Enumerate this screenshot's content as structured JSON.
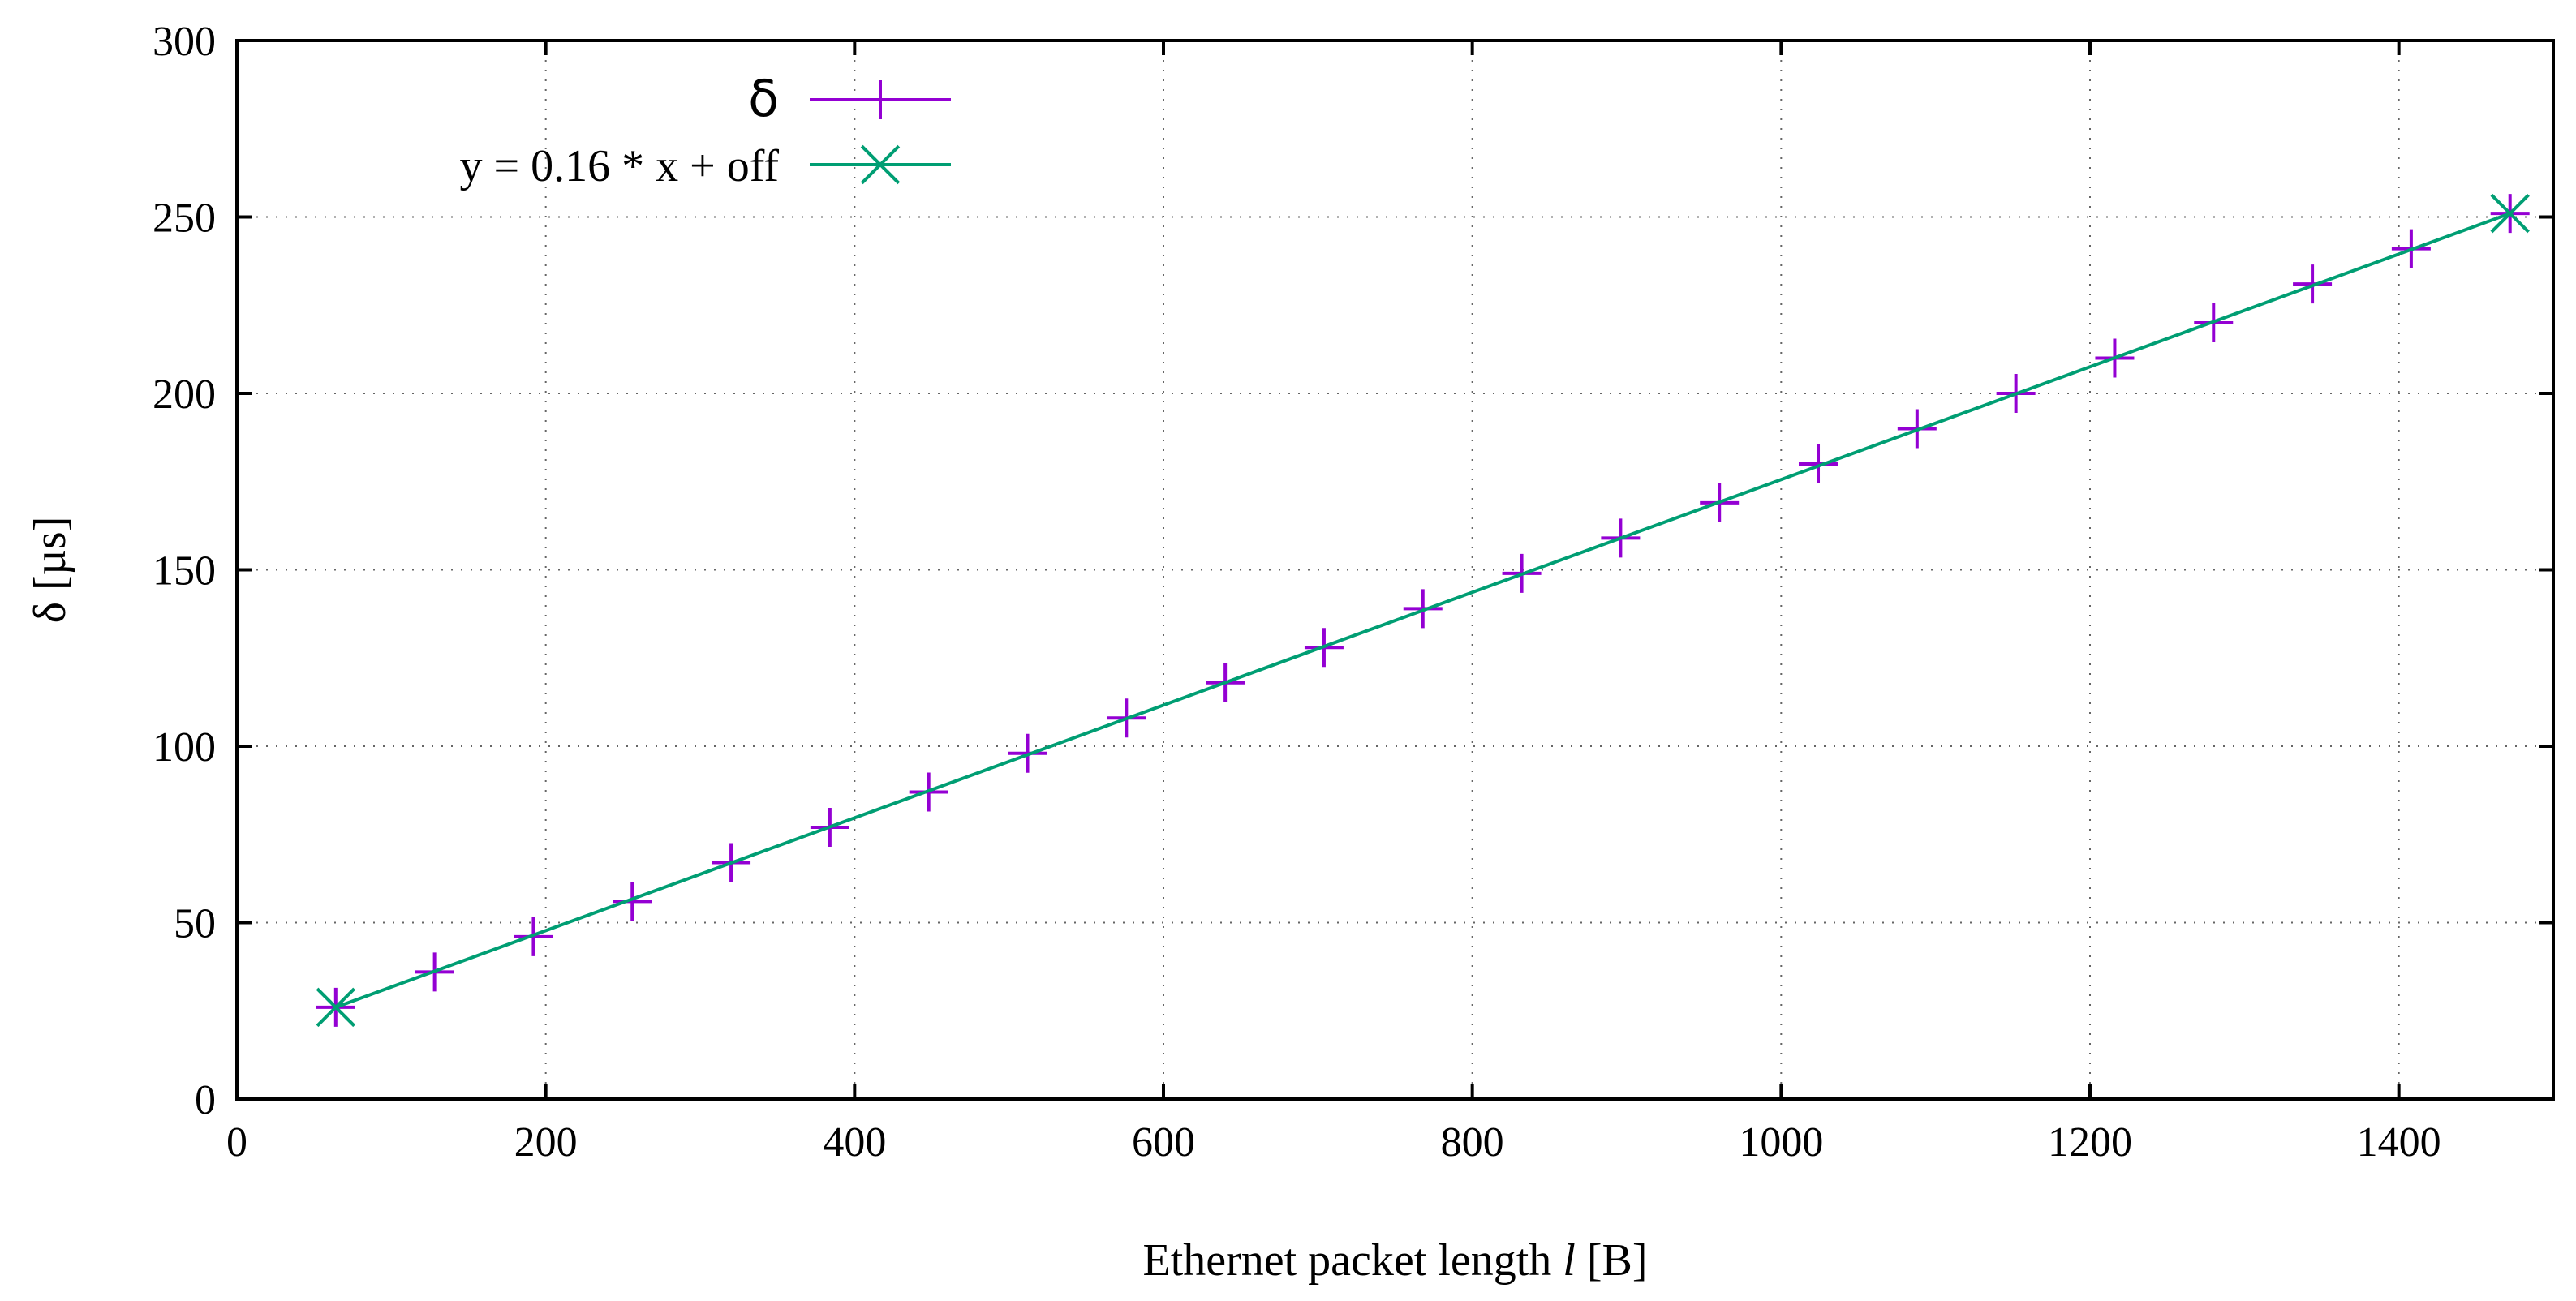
{
  "chart_data": {
    "type": "line",
    "title": "",
    "xlabel_prefix": "Ethernet packet length ",
    "xlabel_var": "l",
    "xlabel_suffix": " [B]",
    "ylabel": "δ [µs]",
    "xlim": [
      0,
      1500
    ],
    "ylim": [
      0,
      300
    ],
    "xticks": [
      0,
      200,
      400,
      600,
      800,
      1000,
      1200,
      1400
    ],
    "yticks": [
      0,
      50,
      100,
      150,
      200,
      250,
      300
    ],
    "grid": true,
    "legend_position": "top-left",
    "series": [
      {
        "name": "δ",
        "marker": "plus",
        "color": "#9400d3",
        "x": [
          64,
          128,
          192,
          256,
          320,
          384,
          448,
          512,
          576,
          640,
          704,
          768,
          832,
          896,
          960,
          1024,
          1088,
          1152,
          1216,
          1280,
          1344,
          1408,
          1472
        ],
        "y": [
          26,
          36,
          46,
          56,
          67,
          77,
          87,
          98,
          108,
          118,
          128,
          139,
          149,
          159,
          169,
          180,
          190,
          200,
          210,
          220,
          231,
          241,
          251
        ]
      },
      {
        "name": "y = 0.16 * x + off",
        "marker": "cross",
        "color": "#009e73",
        "x": [
          64,
          1472
        ],
        "y": [
          26,
          251
        ]
      }
    ]
  }
}
